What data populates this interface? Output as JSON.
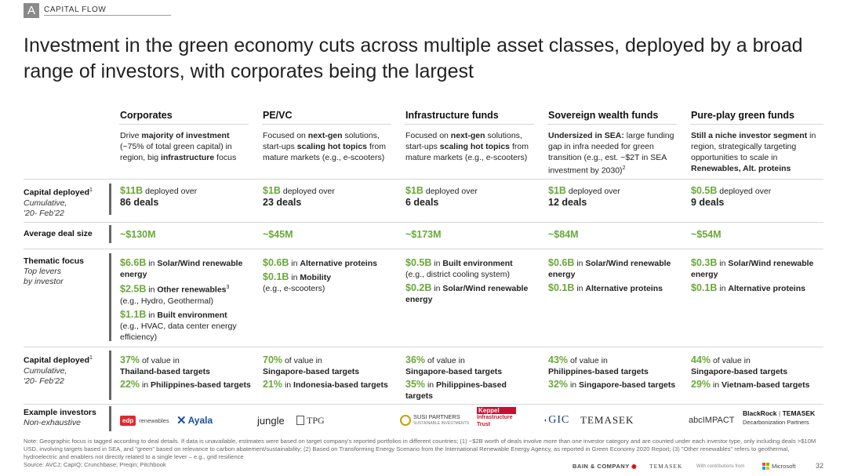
{
  "section": {
    "letter": "A",
    "label": "CAPITAL FLOW"
  },
  "title": "Investment in the green economy cuts across multiple asset classes, deployed by a broad range of investors, with corporates being the largest",
  "columns": [
    {
      "head": "Corporates",
      "avg": "~$130M"
    },
    {
      "head": "PE/VC",
      "avg": "~$45M"
    },
    {
      "head": "Infrastructure funds",
      "avg": "~$173M"
    },
    {
      "head": "Sovereign wealth funds",
      "avg": "~$84M"
    },
    {
      "head": "Pure-play green funds",
      "avg": "~$54M"
    }
  ],
  "desc": {
    "c0": [
      "Drive ",
      "majority of investment",
      " (~75% of total green capital) in region, big ",
      "infrastructure",
      " focus"
    ],
    "c1": [
      "Focused on ",
      "next-gen",
      " solutions, start-ups ",
      "scaling hot topics",
      " from mature markets (e.g., e-scooters)"
    ],
    "c2": [
      "Focused on ",
      "next-gen",
      " solutions, start-ups ",
      "scaling hot topics",
      " from mature markets (e.g., e-scooters)"
    ],
    "c3": [
      "Undersized in SEA:",
      " large funding gap in infra needed for green transition (e.g., est. ~$2T in SEA investment by 2030)",
      "2"
    ],
    "c4": [
      "Still a niche investor segment",
      " in region, strategically targeting opportunities to scale in ",
      "Renewables, Alt. proteins"
    ]
  },
  "rows": {
    "capital": {
      "label": "Capital deployed",
      "sup": "1",
      "sub1": "Cumulative,",
      "sub2": "'20- Feb'22"
    },
    "avg": {
      "label": "Average deal size"
    },
    "thematic": {
      "label": "Thematic focus",
      "sub1": "Top levers",
      "sub2": "by investor"
    },
    "value": {
      "label": "Capital deployed",
      "sup": "1",
      "sub1": "Cumulative,",
      "sub2": "'20- Feb'22"
    },
    "investors": {
      "label": "Example investors",
      "sub1": "Non-exhaustive"
    }
  },
  "capital": [
    {
      "amt": "$11B",
      "mid": " deployed over",
      "deals": "86 deals"
    },
    {
      "amt": "$1B",
      "mid": " deployed over",
      "deals": "23 deals"
    },
    {
      "amt": "$1B",
      "mid": " deployed over",
      "deals": "6 deals"
    },
    {
      "amt": "$1B",
      "mid": " deployed over",
      "deals": "12 deals"
    },
    {
      "amt": "$0.5B",
      "mid": " deployed over",
      "deals": "9 deals"
    }
  ],
  "thematic": {
    "c0": {
      "a": "$6.6B",
      "a_in": " in ",
      "a_b": "Solar/Wind renewable energy",
      "b": "$2.5B",
      "b_in": " in ",
      "b_b": "Other renewables",
      "b_sup": "3",
      "b_n": "(e.g., Hydro, Geothermal)",
      "c": "$1.1B",
      "c_in": " in ",
      "c_b": "Built environment",
      "c_n": "(e.g., HVAC, data center energy efficiency)"
    },
    "c1": {
      "a": "$0.6B",
      "a_in": " in ",
      "a_b": "Alternative proteins",
      "b": "$0.1B",
      "b_in": " in ",
      "b_b": "Mobility",
      "b_n": "(e.g., e-scooters)"
    },
    "c2": {
      "a": "$0.5B",
      "a_in": " in ",
      "a_b": "Built environment",
      "a_n": "(e.g., district cooling system)",
      "b": "$0.2B",
      "b_in": " in ",
      "b_b": "Solar/Wind renewable energy"
    },
    "c3": {
      "a": "$0.6B",
      "a_in": " in ",
      "a_b": "Solar/Wind renewable energy",
      "b": "$0.1B",
      "b_in": " in ",
      "b_b": "Alternative proteins"
    },
    "c4": {
      "a": "$0.3B",
      "a_in": " in ",
      "a_b": "Solar/Wind renewable energy",
      "b": "$0.1B",
      "b_in": " in ",
      "b_b": "Alternative proteins"
    }
  },
  "value": [
    {
      "a": "37%",
      "a_t": " of value in",
      "a_b": "Thailand-based targets",
      "b": "22%",
      "b_t": " in ",
      "b_b": "Philippines-based targets"
    },
    {
      "a": "70%",
      "a_t": " of value in",
      "a_b": "Singapore-based targets",
      "b": "21%",
      "b_t": " in ",
      "b_b": "Indonesia-based targets"
    },
    {
      "a": "36%",
      "a_t": " of value in",
      "a_b": "Singapore-based targets",
      "b": "35%",
      "b_t": " in ",
      "b_b": "Philippines-based targets"
    },
    {
      "a": "43%",
      "a_t": " of value in",
      "a_b": "Philippines-based targets",
      "b": "32%",
      "b_t": " in ",
      "b_b": "Singapore-based targets"
    },
    {
      "a": "44%",
      "a_t": " of value in",
      "a_b": "Singapore-based targets",
      "b": "29%",
      "b_t": " in ",
      "b_b": "Vietnam-based targets"
    }
  ],
  "logos": {
    "edp": "edp",
    "renewables": "renewables",
    "ayala": "Ayala",
    "jungle": "jungle",
    "tpg": "TPG",
    "susi": "SUSI PARTNERS",
    "susi_sub": "SUSTAINABLE INVESTMENTS",
    "keppel": "Keppel",
    "keppel_sub": "Infrastructure Trust",
    "gic": "GIC",
    "temasek": "TEMASEK",
    "abc": "abc",
    "impact": "IMPACT",
    "br": "BlackRock",
    "br_t": "TEMASEK",
    "br_sub": "Decarbonization Partners"
  },
  "note": "Note: Geographic focus is tagged according to deal details. If data is unavailable, estimates were based on target company's reported portfolios in different countries; (1) ~$2B worth of deals involve more than one investor category and are counted under each investor type, only including deals >$10M USD, involving targets based in SEA, and \"green\" based on relevance to carbon abatement/sustainability; (2) Based on Transforming Energy Scenario from the International Renewable Energy Agency, as reported in Green Economy 2020 Report; (3) \"Other renewables\" refers to geothermal, hydroelectric and enablers not directly related to a single lever – e.g., grid resilience",
  "source": "Source: AVCJ; CapIQ; Crunchbase; Preqin; Pitchbook",
  "footer": {
    "bain": "BAIN & COMPANY",
    "temasek": "TEMASEK",
    "contrib": "With contributions from",
    "ms": "Microsoft",
    "page": "32"
  }
}
